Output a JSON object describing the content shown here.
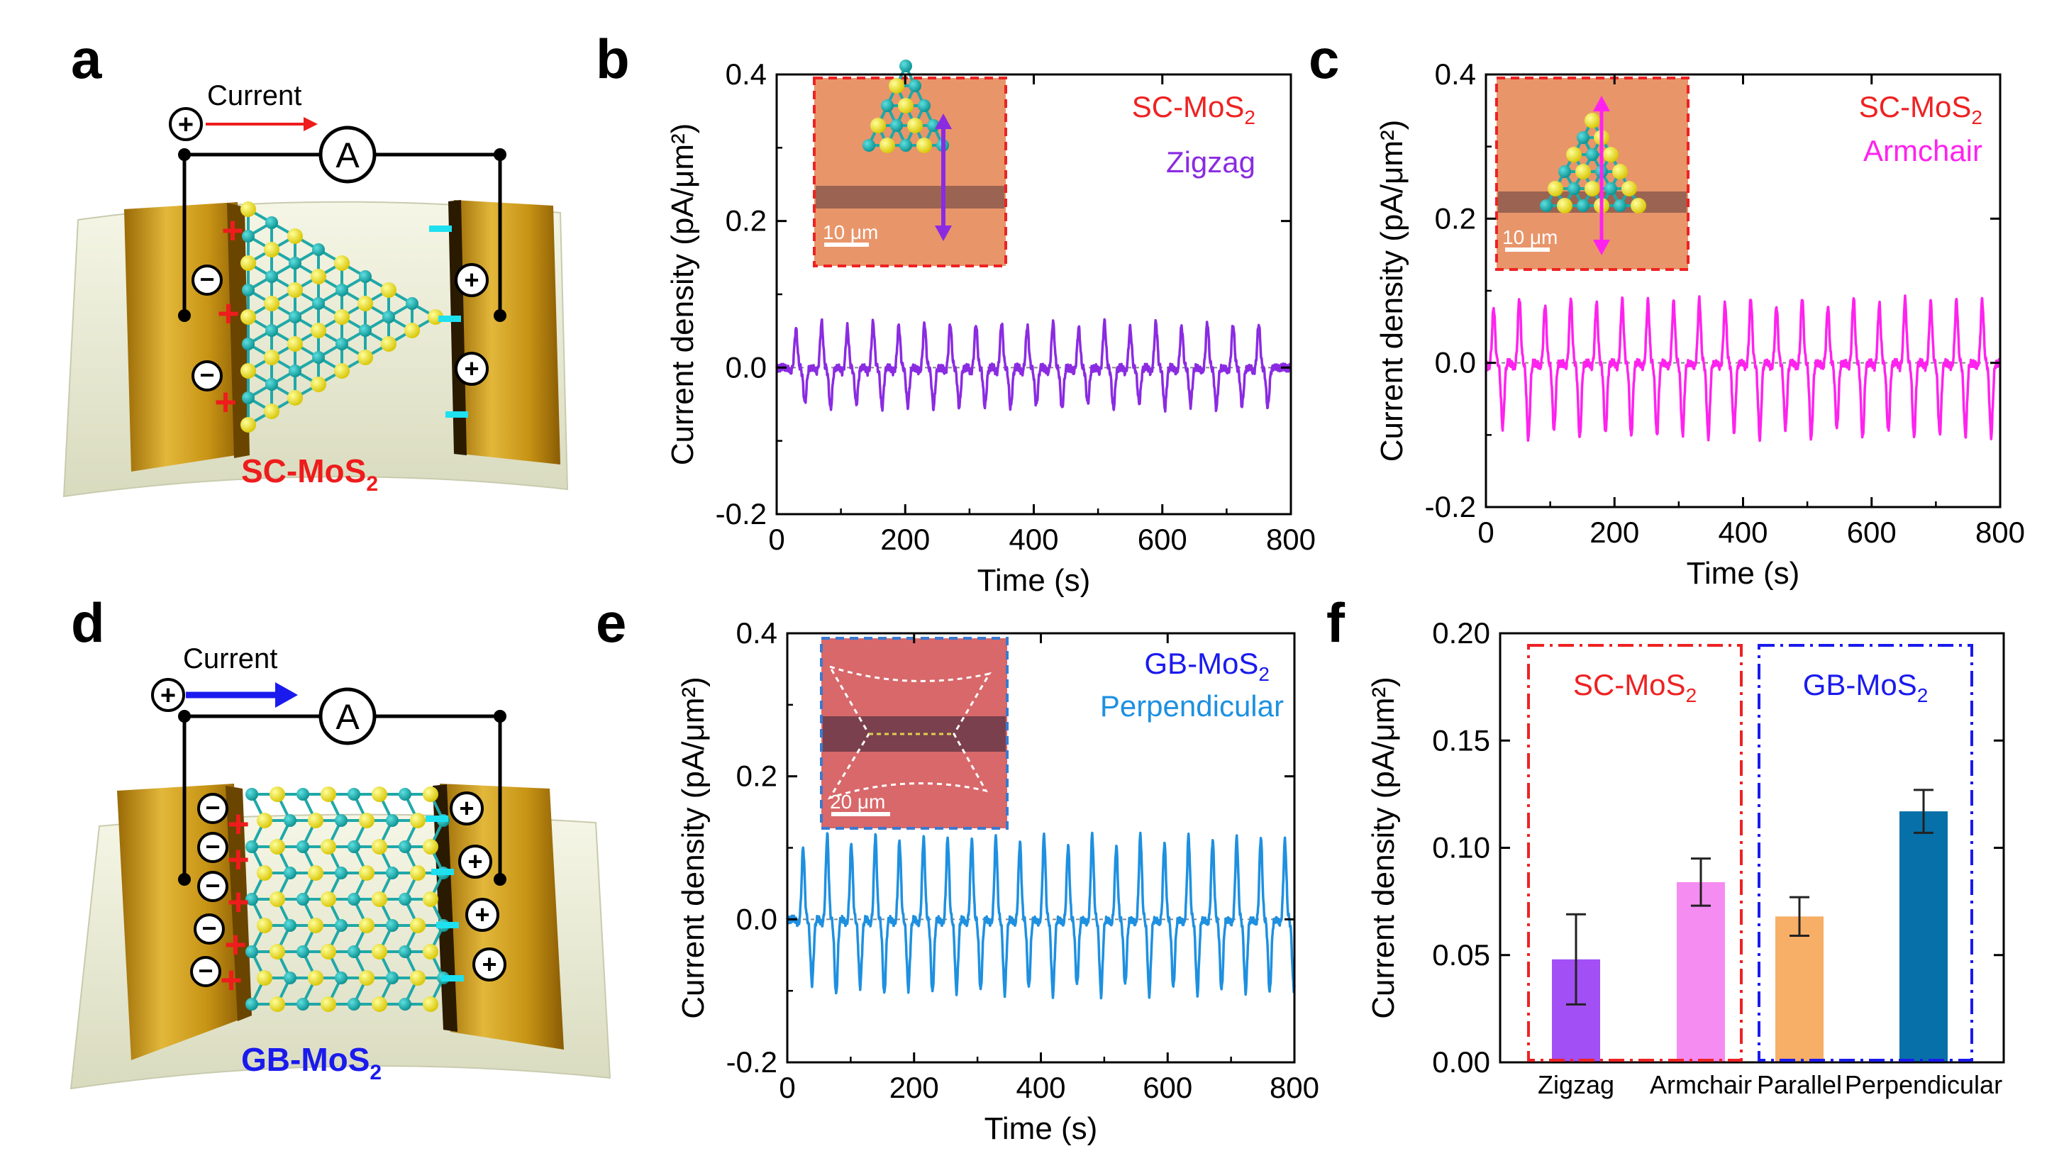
{
  "panel_letters": {
    "a": "a",
    "b": "b",
    "c": "c",
    "d": "d",
    "e": "e",
    "f": "f"
  },
  "colors": {
    "zigzag": "#8a2be2",
    "armchair": "#ff22ee",
    "perpendicular": "#1e90e0",
    "sc_text": "#e8262a",
    "gb_text": "#2222dd",
    "bar_zigzag": "#a24ff5",
    "bar_armchair": "#f58cf2",
    "bar_parallel": "#f7ae66",
    "bar_perpendicular": "#0870a8",
    "gold": "#d4a017",
    "substrate": "#eef0d8",
    "optical_bg": "#e8956a"
  },
  "schematic_a": {
    "current_label": "Current",
    "ammeter": "A",
    "material_label": "SC-MoS",
    "material_sub": "2",
    "plus_sign": "+",
    "minus_sign": "−"
  },
  "schematic_d": {
    "current_label": "Current",
    "ammeter": "A",
    "material_label": "GB-MoS",
    "material_sub": "2",
    "plus_sign": "+",
    "minus_sign": "−"
  },
  "chart_data": [
    {
      "panel": "b",
      "type": "line",
      "xlabel": "Time (s)",
      "ylabel": "Current density (pA/μm²)",
      "xlim": [
        0,
        800
      ],
      "ylim": [
        -0.2,
        0.4
      ],
      "xticks": [
        "0",
        "200",
        "400",
        "600",
        "800"
      ],
      "yticks": [
        "-0.2",
        "0.0",
        "0.2",
        "0.4"
      ],
      "legend": {
        "line1": "SC-MoS",
        "line1_sub": "2",
        "line2": "Zigzag"
      },
      "inset": {
        "scale_bar": "10 μm"
      },
      "signal": {
        "period_s": 40,
        "first_peak_s": 30,
        "peak": 0.062,
        "trough": -0.056,
        "count": 19
      }
    },
    {
      "panel": "c",
      "type": "line",
      "xlabel": "Time (s)",
      "ylabel": "Current density (pA/μm²)",
      "xlim": [
        0,
        800
      ],
      "ylim": [
        -0.2,
        0.4
      ],
      "xticks": [
        "0",
        "200",
        "400",
        "600",
        "800"
      ],
      "yticks": [
        "-0.2",
        "0.0",
        "0.2",
        "0.4"
      ],
      "legend": {
        "line1": "SC-MoS",
        "line1_sub": "2",
        "line2": "Armchair"
      },
      "inset": {
        "scale_bar": "10 μm"
      },
      "signal": {
        "period_s": 40,
        "first_peak_s": 12,
        "peak": 0.09,
        "trough": -0.105,
        "count": 20
      }
    },
    {
      "panel": "e",
      "type": "line",
      "xlabel": "Time (s)",
      "ylabel": "Current density (pA/μm²)",
      "xlim": [
        0,
        800
      ],
      "ylim": [
        -0.2,
        0.4
      ],
      "xticks": [
        "0",
        "200",
        "400",
        "600",
        "800"
      ],
      "yticks": [
        "-0.2",
        "0.0",
        "0.2",
        "0.4"
      ],
      "legend": {
        "line1": "GB-MoS",
        "line1_sub": "2",
        "line2": "Perpendicular"
      },
      "inset": {
        "scale_bar": "20 μm"
      },
      "signal": {
        "period_s": 38,
        "first_peak_s": 25,
        "peak": 0.118,
        "trough": -0.105,
        "count": 21
      }
    },
    {
      "panel": "f",
      "type": "bar",
      "ylabel": "Current density (pA/μm²)",
      "ylim": [
        0,
        0.2
      ],
      "yticks": [
        "0.00",
        "0.05",
        "0.10",
        "0.15",
        "0.20"
      ],
      "categories": [
        "Zigzag",
        "Armchair",
        "Parallel",
        "Perpendicular"
      ],
      "values": [
        0.048,
        0.084,
        0.068,
        0.117
      ],
      "errors": [
        0.021,
        0.011,
        0.009,
        0.01
      ],
      "groups": [
        {
          "label": "SC-MoS",
          "sub": "2",
          "members": [
            "Zigzag",
            "Armchair"
          ]
        },
        {
          "label": "GB-MoS",
          "sub": "2",
          "members": [
            "Parallel",
            "Perpendicular"
          ]
        }
      ]
    }
  ]
}
